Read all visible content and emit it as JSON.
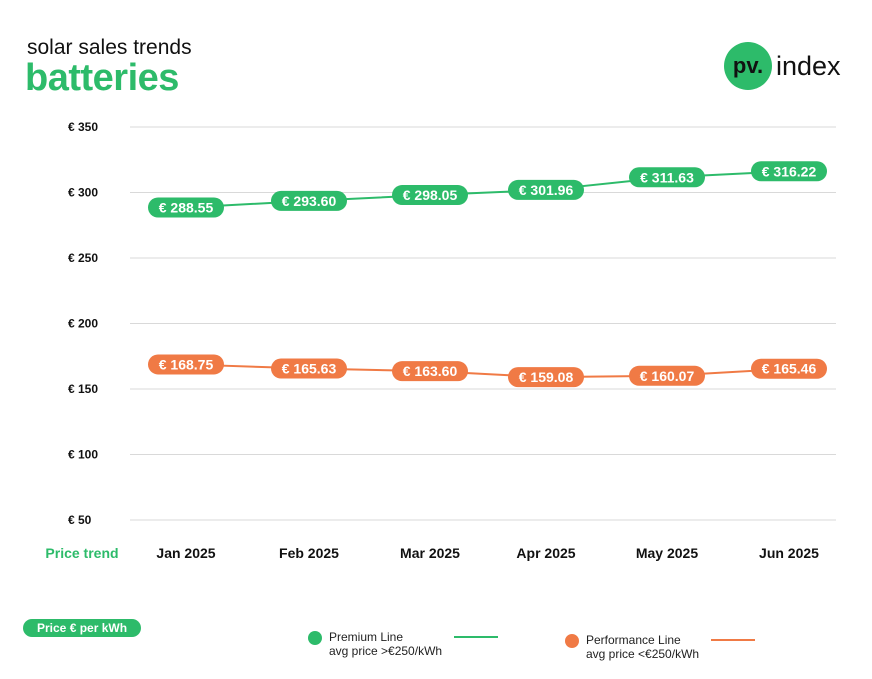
{
  "header": {
    "subtitle": "solar sales trends",
    "title": "batteries"
  },
  "logo": {
    "mark": "pv.",
    "word": "index"
  },
  "colors": {
    "premium": "#2dbb6a",
    "performance": "#f07a45",
    "grid": "#d9d9d9"
  },
  "unit_badge": "Price € per kWh",
  "legend": [
    {
      "name": "Premium Line",
      "note": "avg price >€250/kWh"
    },
    {
      "name": "Performance Line",
      "note": "avg price <€250/kWh"
    }
  ],
  "chart_data": {
    "type": "line",
    "title": "batteries",
    "subtitle": "solar sales trends",
    "xlabel": "Price trend",
    "ylabel": "",
    "categories": [
      "Jan 2025",
      "Feb 2025",
      "Mar 2025",
      "Apr 2025",
      "May 2025",
      "Jun 2025"
    ],
    "ylim": [
      50,
      350
    ],
    "yticks": [
      50,
      100,
      150,
      200,
      250,
      300,
      350
    ],
    "ytick_labels": [
      "€ 50",
      "€ 100",
      "€ 150",
      "€ 200",
      "€ 250",
      "€ 300",
      "€ 350"
    ],
    "grid": true,
    "legend_position": "bottom",
    "series": [
      {
        "name": "Premium Line",
        "values": [
          288.55,
          293.6,
          298.05,
          301.96,
          311.63,
          316.22
        ],
        "labels": [
          "€ 288.55",
          "€ 293.60",
          "€ 298.05",
          "€ 301.96",
          "€ 311.63",
          "€ 316.22"
        ]
      },
      {
        "name": "Performance Line",
        "values": [
          168.75,
          165.63,
          163.6,
          159.08,
          160.07,
          165.46
        ],
        "labels": [
          "€ 168.75",
          "€ 165.63",
          "€ 163.60",
          "€ 159.08",
          "€ 160.07",
          "€ 165.46"
        ]
      }
    ]
  }
}
